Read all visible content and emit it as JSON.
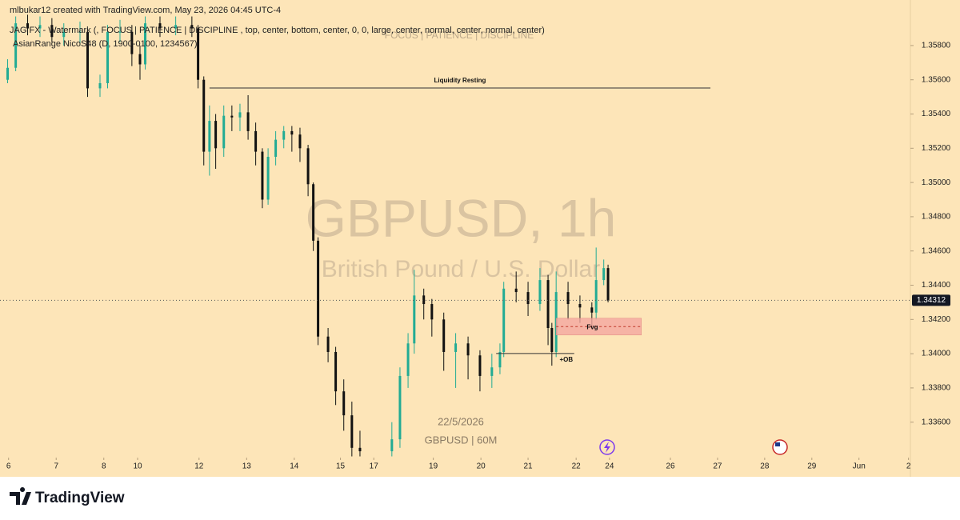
{
  "chart_data": {
    "type": "candlestick",
    "header": "mlbukar12 created with TradingView.com, May 23, 2026 04:45 UTC-4",
    "indicator_1": "JAG FX - Watermark (, FOCUS | PATIENCE | DISCIPLINE , top, center, bottom, center, 0, 0, large, center, normal, center, normal, center)",
    "indicator_2": "AsianRange NicoS48 (D, 1900-0100, 1234567)",
    "watermark_top": "FOCUS | PATIENCE | DISCIPLINE",
    "watermark_symbol": "GBPUSD, 1h",
    "watermark_name": "British Pound / U.S. Dollar",
    "watermark_date": "22/5/2026",
    "watermark_bottom": "GBPUSD | 60M",
    "brand": "TradingView",
    "up_color": "#22ab94",
    "down_color": "#111111",
    "xlim": [
      -0.18,
      18.94
    ],
    "ylim": [
      1.33393,
      1.36066
    ],
    "xticks": [
      {
        "value": 0,
        "label": "6"
      },
      {
        "value": 1,
        "label": "7"
      },
      {
        "value": 2,
        "label": "8"
      },
      {
        "value": 2.71,
        "label": "10"
      },
      {
        "value": 4,
        "label": "12"
      },
      {
        "value": 5,
        "label": "13"
      },
      {
        "value": 6,
        "label": "14"
      },
      {
        "value": 6.97,
        "label": "15"
      },
      {
        "value": 7.67,
        "label": "17"
      },
      {
        "value": 8.92,
        "label": "19"
      },
      {
        "value": 9.92,
        "label": "20"
      },
      {
        "value": 10.91,
        "label": "21"
      },
      {
        "value": 11.92,
        "label": "22"
      },
      {
        "value": 12.62,
        "label": "24"
      },
      {
        "value": 13.9,
        "label": "26"
      },
      {
        "value": 14.89,
        "label": "27"
      },
      {
        "value": 15.88,
        "label": "28"
      },
      {
        "value": 16.87,
        "label": "29"
      },
      {
        "value": 17.86,
        "label": "Jun"
      },
      {
        "value": 18.9,
        "label": "2"
      }
    ],
    "yticks": [
      {
        "value": 1.358,
        "label": "1.35800"
      },
      {
        "value": 1.356,
        "label": "1.35600"
      },
      {
        "value": 1.354,
        "label": "1.35400"
      },
      {
        "value": 1.352,
        "label": "1.35200"
      },
      {
        "value": 1.35,
        "label": "1.35000"
      },
      {
        "value": 1.348,
        "label": "1.34800"
      },
      {
        "value": 1.346,
        "label": "1.34600"
      },
      {
        "value": 1.344,
        "label": "1.34400"
      },
      {
        "value": 1.342,
        "label": "1.34200"
      },
      {
        "value": 1.34,
        "label": "1.34000"
      },
      {
        "value": 1.338,
        "label": "1.33800"
      },
      {
        "value": 1.336,
        "label": "1.33600"
      }
    ],
    "last_price": 1.34312,
    "x": [
      -0.02,
      0.15,
      0.4,
      0.66,
      0.91,
      1.16,
      1.5,
      1.66,
      1.92,
      2.08,
      2.34,
      2.59,
      2.76,
      2.87,
      3.18,
      3.51,
      3.85,
      3.98,
      4.1,
      4.22,
      4.35,
      4.52,
      4.69,
      4.86,
      5.03,
      5.19,
      5.33,
      5.45,
      5.61,
      5.78,
      5.95,
      6.12,
      6.29,
      6.4,
      6.5,
      6.71,
      6.87,
      7.04,
      7.21,
      7.38,
      8.05,
      8.22,
      8.39,
      8.52,
      8.72,
      8.89,
      9.14,
      9.39,
      9.65,
      9.9,
      10.15,
      10.32,
      10.4,
      10.66,
      10.91,
      11.16,
      11.33,
      11.41,
      11.5,
      11.75,
      12.0,
      12.25,
      12.34,
      12.5,
      12.59
    ],
    "open": [
      1.356,
      1.3567,
      1.3593,
      1.359,
      1.3592,
      1.3585,
      1.3588,
      1.3588,
      1.3555,
      1.3558,
      1.3588,
      1.3588,
      1.3575,
      1.3569,
      1.3593,
      1.359,
      1.3592,
      1.359,
      1.356,
      1.3518,
      1.3536,
      1.352,
      1.3539,
      1.3538,
      1.3541,
      1.353,
      1.3518,
      1.349,
      1.3515,
      1.3525,
      1.353,
      1.3528,
      1.352,
      1.3499,
      1.3466,
      1.341,
      1.3401,
      1.3378,
      1.3364,
      1.3345,
      1.3343,
      1.335,
      1.3387,
      1.3406,
      1.3434,
      1.3429,
      1.342,
      1.3401,
      1.3406,
      1.3399,
      1.3387,
      1.3392,
      1.3401,
      1.3438,
      1.3436,
      1.3429,
      1.3443,
      1.3415,
      1.3401,
      1.3436,
      1.3429,
      1.3427,
      1.3424,
      1.3443,
      1.345
    ],
    "high": [
      1.3572,
      1.3597,
      1.3598,
      1.3597,
      1.3596,
      1.3593,
      1.3594,
      1.359,
      1.3563,
      1.3592,
      1.3595,
      1.3592,
      1.358,
      1.3597,
      1.3597,
      1.3597,
      1.3597,
      1.3592,
      1.3562,
      1.3545,
      1.354,
      1.3545,
      1.3545,
      1.3546,
      1.3551,
      1.3535,
      1.352,
      1.352,
      1.353,
      1.3533,
      1.3533,
      1.3532,
      1.3522,
      1.35,
      1.3468,
      1.3415,
      1.3404,
      1.3385,
      1.3372,
      1.3355,
      1.336,
      1.3392,
      1.3412,
      1.3449,
      1.3438,
      1.3432,
      1.3424,
      1.3412,
      1.341,
      1.3402,
      1.34,
      1.3406,
      1.3442,
      1.3448,
      1.3442,
      1.345,
      1.3446,
      1.3418,
      1.3448,
      1.3442,
      1.3434,
      1.343,
      1.3462,
      1.3455,
      1.3452
    ],
    "low": [
      1.3558,
      1.3565,
      1.3586,
      1.3585,
      1.3582,
      1.358,
      1.358,
      1.355,
      1.355,
      1.3555,
      1.3582,
      1.3568,
      1.356,
      1.3566,
      1.3585,
      1.3586,
      1.3585,
      1.3555,
      1.351,
      1.3504,
      1.3508,
      1.3515,
      1.353,
      1.353,
      1.3525,
      1.351,
      1.3485,
      1.3487,
      1.351,
      1.352,
      1.3518,
      1.3512,
      1.3492,
      1.346,
      1.3405,
      1.3395,
      1.337,
      1.3355,
      1.334,
      1.334,
      1.334,
      1.3345,
      1.338,
      1.34,
      1.342,
      1.341,
      1.339,
      1.338,
      1.3385,
      1.3378,
      1.338,
      1.3388,
      1.3398,
      1.343,
      1.3422,
      1.3425,
      1.3405,
      1.3393,
      1.3398,
      1.342,
      1.3418,
      1.3415,
      1.342,
      1.344,
      1.343
    ],
    "close": [
      1.3567,
      1.3593,
      1.359,
      1.3592,
      1.3585,
      1.3588,
      1.3588,
      1.3555,
      1.3558,
      1.3588,
      1.3588,
      1.3575,
      1.3569,
      1.3593,
      1.359,
      1.3592,
      1.359,
      1.356,
      1.3518,
      1.3536,
      1.352,
      1.3539,
      1.3538,
      1.3541,
      1.353,
      1.3518,
      1.349,
      1.3515,
      1.3525,
      1.353,
      1.3528,
      1.352,
      1.3499,
      1.3466,
      1.341,
      1.3401,
      1.3378,
      1.3364,
      1.3345,
      1.3343,
      1.335,
      1.3387,
      1.3406,
      1.3434,
      1.3429,
      1.342,
      1.3401,
      1.3406,
      1.3399,
      1.3387,
      1.3392,
      1.3401,
      1.3438,
      1.3436,
      1.3429,
      1.3443,
      1.3415,
      1.3401,
      1.3436,
      1.3429,
      1.3427,
      1.3424,
      1.3443,
      1.345,
      1.3431
    ],
    "annotations": [
      {
        "label": "Liquidity Resting",
        "kind": "line",
        "x": [
          4.22,
          14.74
        ],
        "y": 1.35552
      },
      {
        "label": "Fvg",
        "kind": "box",
        "x": [
          11.5,
          13.29
        ],
        "y": [
          1.34109,
          1.34207
        ],
        "color": "#f4a6a0"
      },
      {
        "label": "+OB",
        "kind": "line",
        "x": [
          10.24,
          11.88
        ],
        "y": 1.34001
      }
    ]
  }
}
